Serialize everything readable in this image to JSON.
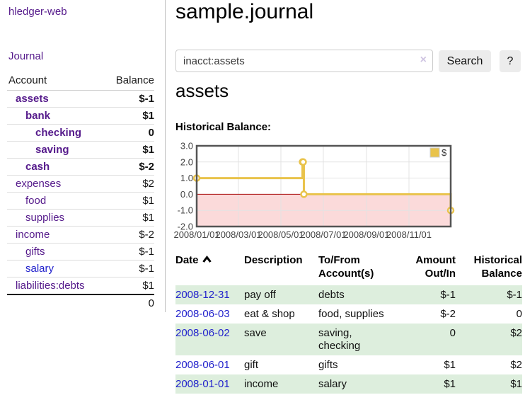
{
  "colors": {
    "link_purple": "#551a8b",
    "link_blue": "#2222cc",
    "negative": "#a11d1d",
    "negative_soft": "#c38181",
    "row_shade": "#ddeedd"
  },
  "app": {
    "brand": "hledger-web",
    "nav_journal": "Journal"
  },
  "sidebar": {
    "header": {
      "account": "Account",
      "balance": "Balance"
    },
    "accounts": [
      {
        "name": "assets",
        "depth": 1,
        "bold": true,
        "balance": "$-1",
        "balance_class": "neg"
      },
      {
        "name": "bank",
        "depth": 2,
        "bold": true,
        "balance": "$1",
        "balance_class": ""
      },
      {
        "name": "checking",
        "depth": 3,
        "bold": true,
        "balance": "0",
        "balance_class": ""
      },
      {
        "name": "saving",
        "depth": 3,
        "bold": true,
        "balance": "$1",
        "balance_class": ""
      },
      {
        "name": "cash",
        "depth": 2,
        "bold": true,
        "balance": "$-2",
        "balance_class": "neg"
      },
      {
        "name": "expenses",
        "depth": 1,
        "bold": false,
        "balance": "$2",
        "balance_class": ""
      },
      {
        "name": "food",
        "depth": 2,
        "bold": false,
        "balance": "$1",
        "balance_class": ""
      },
      {
        "name": "supplies",
        "depth": 2,
        "bold": false,
        "balance": "$1",
        "balance_class": ""
      },
      {
        "name": "income",
        "depth": 1,
        "bold": false,
        "balance": "$-2",
        "balance_class": "soft"
      },
      {
        "name": "gifts",
        "depth": 2,
        "bold": false,
        "balance": "$-1",
        "balance_class": "soft"
      },
      {
        "name": "salary",
        "depth": 2,
        "bold": false,
        "balance": "$-1",
        "balance_class": "soft",
        "link_style": "blue"
      },
      {
        "name": "liabilities:debts",
        "depth": 1,
        "bold": false,
        "balance": "$1",
        "balance_class": ""
      }
    ],
    "total": "0"
  },
  "header": {
    "title": "sample.journal"
  },
  "search": {
    "value": "inacct:assets",
    "clear_icon": "×",
    "button": "Search",
    "help_button": "?"
  },
  "account_page": {
    "heading": "assets",
    "chart_heading": "Historical Balance:"
  },
  "chart_data": {
    "type": "line",
    "step": true,
    "title": "Historical Balance",
    "series": [
      {
        "name": "$",
        "color": "#e9c34b",
        "points": [
          [
            "2008-01-01",
            1
          ],
          [
            "2008-06-01",
            2
          ],
          [
            "2008-06-02",
            2
          ],
          [
            "2008-06-03",
            0
          ],
          [
            "2008-12-31",
            -1
          ]
        ]
      }
    ],
    "xlim": [
      "2008-01-01",
      "2008-12-31"
    ],
    "ylim": [
      -2,
      3
    ],
    "x_ticks": [
      "2008/01/01",
      "2008/03/01",
      "2008/05/01",
      "2008/07/01",
      "2008/09/01",
      "2008/11/01"
    ],
    "y_ticks": [
      "3.0",
      "2.0",
      "1.0",
      "0.0",
      "-1.0",
      "-2.0"
    ],
    "grid_color": "#e3e3e3",
    "border_color": "#545454",
    "zero_line_color": "#a40000",
    "negative_fill": "#fbdada",
    "legend_label": "$",
    "legend_position": "top-right"
  },
  "register": {
    "columns": [
      "Date",
      "Description",
      "To/From Account(s)",
      "Amount Out/In",
      "Historical Balance"
    ],
    "rows": [
      {
        "date": "2008-12-31",
        "description": "pay off",
        "accounts": "debts",
        "amount": "$-1",
        "amount_class": "neg",
        "balance": "$-1",
        "balance_class": "neg",
        "shaded": true
      },
      {
        "date": "2008-06-03",
        "description": "eat & shop",
        "accounts": "food, supplies",
        "amount": "$-2",
        "amount_class": "neg",
        "balance": "0",
        "balance_class": "",
        "shaded": false
      },
      {
        "date": "2008-06-02",
        "description": "save",
        "accounts": "saving, checking",
        "amount": "0",
        "amount_class": "",
        "balance": "$2",
        "balance_class": "",
        "shaded": true
      },
      {
        "date": "2008-06-01",
        "description": "gift",
        "accounts": "gifts",
        "amount": "$1",
        "amount_class": "",
        "balance": "$2",
        "balance_class": "",
        "shaded": false
      },
      {
        "date": "2008-01-01",
        "description": "income",
        "accounts": "salary",
        "amount": "$1",
        "amount_class": "",
        "balance": "$1",
        "balance_class": "",
        "shaded": true
      }
    ]
  }
}
